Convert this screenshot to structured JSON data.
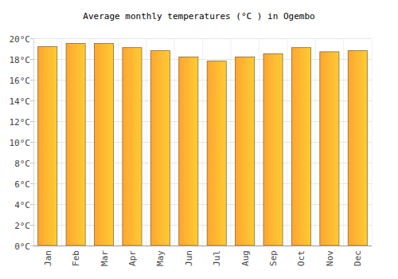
{
  "chart_data": {
    "type": "bar",
    "title": "Average monthly temperatures (°C ) in Ogembo",
    "categories": [
      "Jan",
      "Feb",
      "Mar",
      "Apr",
      "May",
      "Jun",
      "Jul",
      "Aug",
      "Sep",
      "Oct",
      "Nov",
      "Dec"
    ],
    "values": [
      19.2,
      19.5,
      19.5,
      19.1,
      18.8,
      18.2,
      17.8,
      18.2,
      18.5,
      19.1,
      18.7,
      18.8
    ],
    "color": "#ffa630",
    "ylim": [
      0,
      20
    ],
    "yticks": [
      {
        "value": 0,
        "label": "0°C"
      },
      {
        "value": 2,
        "label": "2°C"
      },
      {
        "value": 4,
        "label": "4°C"
      },
      {
        "value": 6,
        "label": "6°C"
      },
      {
        "value": 8,
        "label": "8°C"
      },
      {
        "value": 10,
        "label": "10°C"
      },
      {
        "value": 12,
        "label": "12°C"
      },
      {
        "value": 14,
        "label": "14°C"
      },
      {
        "value": 16,
        "label": "16°C"
      },
      {
        "value": 18,
        "label": "18°C"
      },
      {
        "value": 20,
        "label": "20°C"
      }
    ],
    "grid": true
  }
}
